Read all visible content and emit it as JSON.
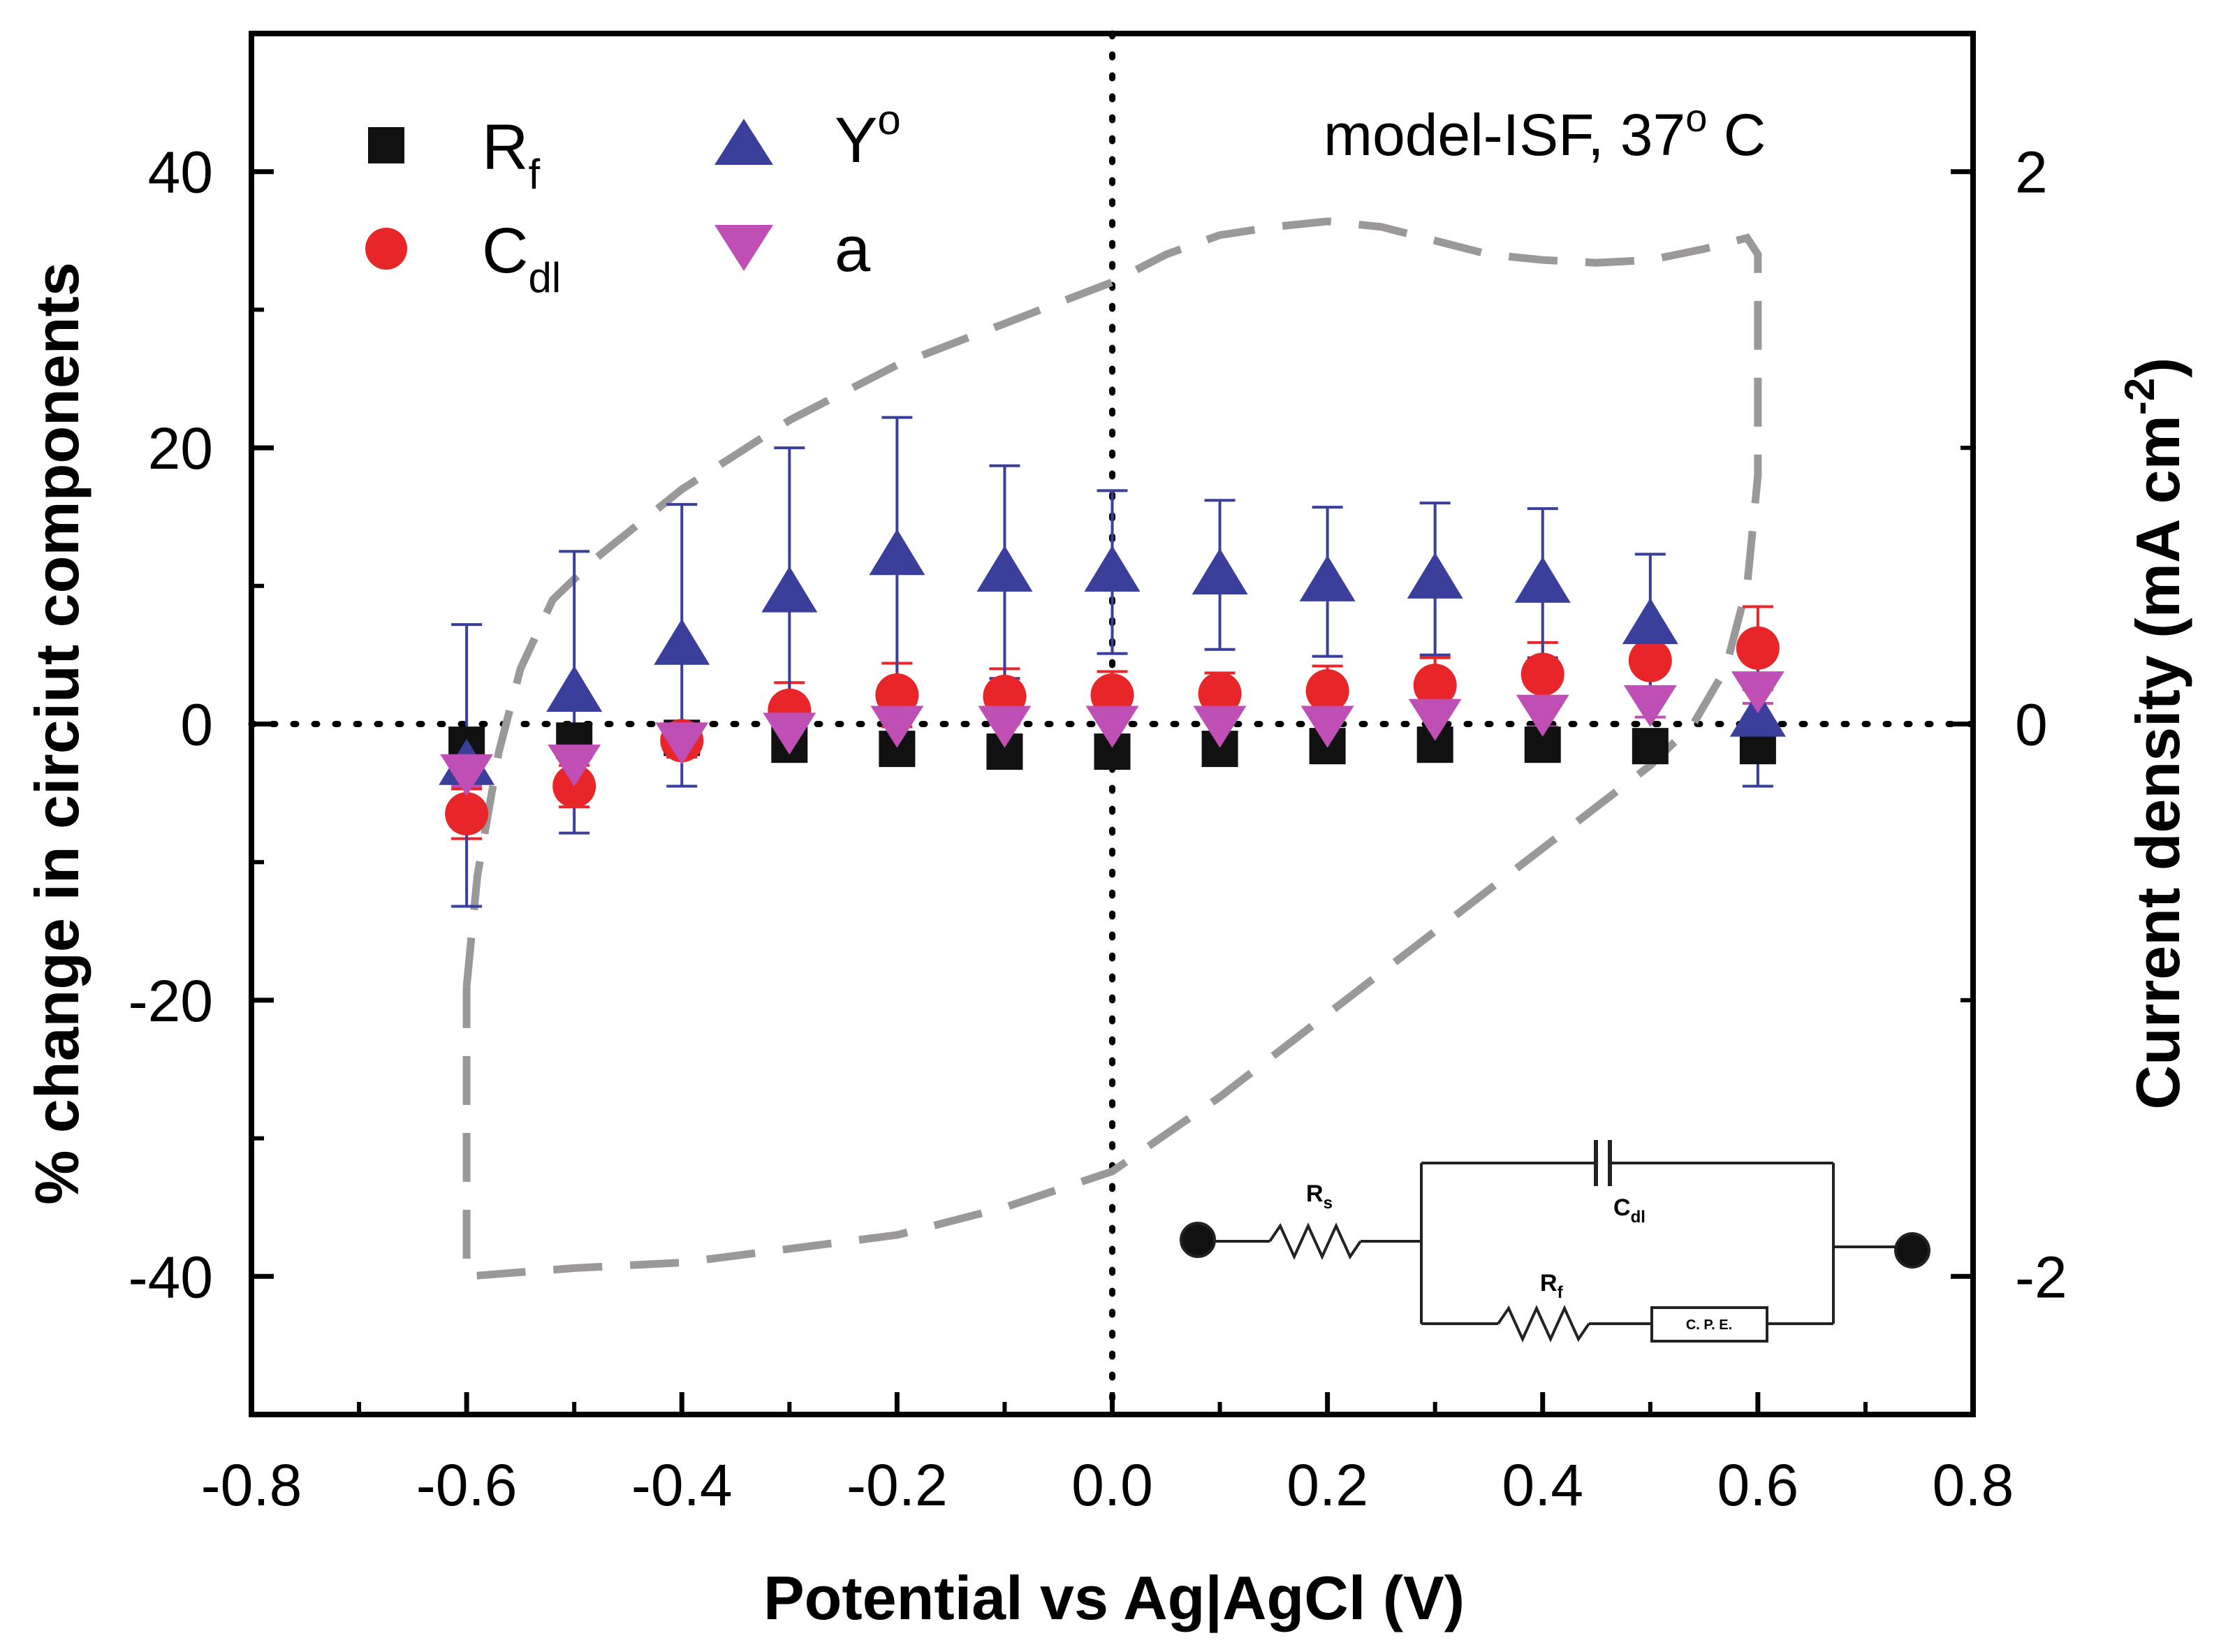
{
  "chart_data": {
    "type": "scatter",
    "annotation": "model-ISF, 37° C",
    "annotation_parts": {
      "prefix": "model-ISF, 37",
      "sup": "o",
      "suffix": " C"
    },
    "xlabel": "Potential vs Ag|AgCl (V)",
    "ylabel": "% change in circiut components",
    "y2label_main": "Current density (mA cm",
    "y2label_sup": "-2",
    "y2label_end": ")",
    "xlim": [
      -0.8,
      0.8
    ],
    "ylim": [
      -50,
      50
    ],
    "y2lim": [
      -2.5,
      2.5
    ],
    "x_ticks": [
      "-0.8",
      "-0.6",
      "-0.4",
      "-0.2",
      "0.0",
      "0.2",
      "0.4",
      "0.6",
      "0.8"
    ],
    "y_ticks": [
      "40",
      "20",
      "0",
      "-20",
      "-40"
    ],
    "y2_ticks": [
      "2",
      "0",
      "-2"
    ],
    "x": [
      -0.6,
      -0.5,
      -0.4,
      -0.3,
      -0.2,
      -0.1,
      0.0,
      0.1,
      0.2,
      0.3,
      0.4,
      0.5,
      0.6
    ],
    "series": [
      {
        "name": "R",
        "sub": "f",
        "marker": "square",
        "color": "#111111",
        "values": [
          -1.5,
          -1.2,
          -1.0,
          -1.5,
          -1.8,
          -2.0,
          -2.0,
          -1.8,
          -1.6,
          -1.5,
          -1.5,
          -1.6,
          -1.6
        ],
        "errors": [
          0,
          0,
          0,
          0,
          0,
          0,
          0,
          0,
          0,
          0,
          0,
          0,
          0
        ]
      },
      {
        "name": "C",
        "sub": "dl",
        "marker": "circle",
        "color": "#e8262a",
        "values": [
          -6.5,
          -4.5,
          -1.2,
          1.0,
          2.1,
          2.0,
          2.1,
          2.2,
          2.4,
          2.8,
          3.6,
          4.6,
          5.5
        ],
        "errors": [
          1.8,
          1.5,
          1.2,
          2.0,
          2.3,
          2.0,
          1.7,
          1.5,
          1.8,
          2.0,
          2.3,
          2.6,
          3.0
        ]
      },
      {
        "name": "Y",
        "sup": "o",
        "marker": "triangle-up",
        "color": "#3a3f9c",
        "values": [
          -3.0,
          2.3,
          5.7,
          9.5,
          12.2,
          11.0,
          11.0,
          10.8,
          10.3,
          10.5,
          10.2,
          7.2,
          0.5
        ],
        "errors": [
          10.2,
          10.2,
          10.2,
          10.5,
          10.0,
          7.7,
          5.9,
          5.4,
          5.4,
          5.5,
          5.4,
          5.1,
          5.0
        ]
      },
      {
        "name": "a",
        "marker": "triangle-down",
        "color": "#c04fb5",
        "values": [
          -3.5,
          -2.8,
          -1.2,
          -0.5,
          0.0,
          0.0,
          0.0,
          0.0,
          0.0,
          0.5,
          0.8,
          1.5,
          2.5
        ],
        "errors": [
          1.0,
          1.0,
          1.0,
          1.0,
          1.0,
          1.0,
          1.0,
          1.0,
          1.0,
          1.0,
          1.0,
          1.0,
          1.0
        ]
      }
    ],
    "cv_curve": {
      "color": "#9a9898",
      "x": [
        -0.6,
        -0.59,
        -0.57,
        -0.55,
        -0.52,
        -0.48,
        -0.4,
        -0.3,
        -0.2,
        -0.1,
        0.0,
        0.05,
        0.1,
        0.15,
        0.2,
        0.25,
        0.3,
        0.35,
        0.4,
        0.45,
        0.5,
        0.55,
        0.59,
        0.6,
        0.6,
        0.59,
        0.57,
        0.54,
        0.5,
        0.45,
        0.4,
        0.3,
        0.2,
        0.1,
        0.0,
        -0.1,
        -0.2,
        -0.3,
        -0.4,
        -0.5,
        -0.6,
        -0.6,
        -0.6
      ],
      "y": [
        -0.95,
        -0.55,
        -0.1,
        0.2,
        0.45,
        0.6,
        0.85,
        1.1,
        1.3,
        1.45,
        1.6,
        1.7,
        1.77,
        1.8,
        1.82,
        1.8,
        1.75,
        1.7,
        1.68,
        1.67,
        1.68,
        1.72,
        1.76,
        1.7,
        0.9,
        0.5,
        0.2,
        0.0,
        -0.15,
        -0.3,
        -0.45,
        -0.75,
        -1.05,
        -1.35,
        -1.62,
        -1.75,
        -1.85,
        -1.9,
        -1.95,
        -1.97,
        -2.0,
        -1.6,
        -0.95
      ]
    },
    "grid": false,
    "legend_position": "top-left",
    "inset_circuit": {
      "labels": {
        "rs": "R",
        "rs_sub": "s",
        "cdl": "C",
        "cdl_sub": "dl",
        "rf": "R",
        "rf_sub": "f",
        "cpe": "C. P. E."
      }
    }
  }
}
